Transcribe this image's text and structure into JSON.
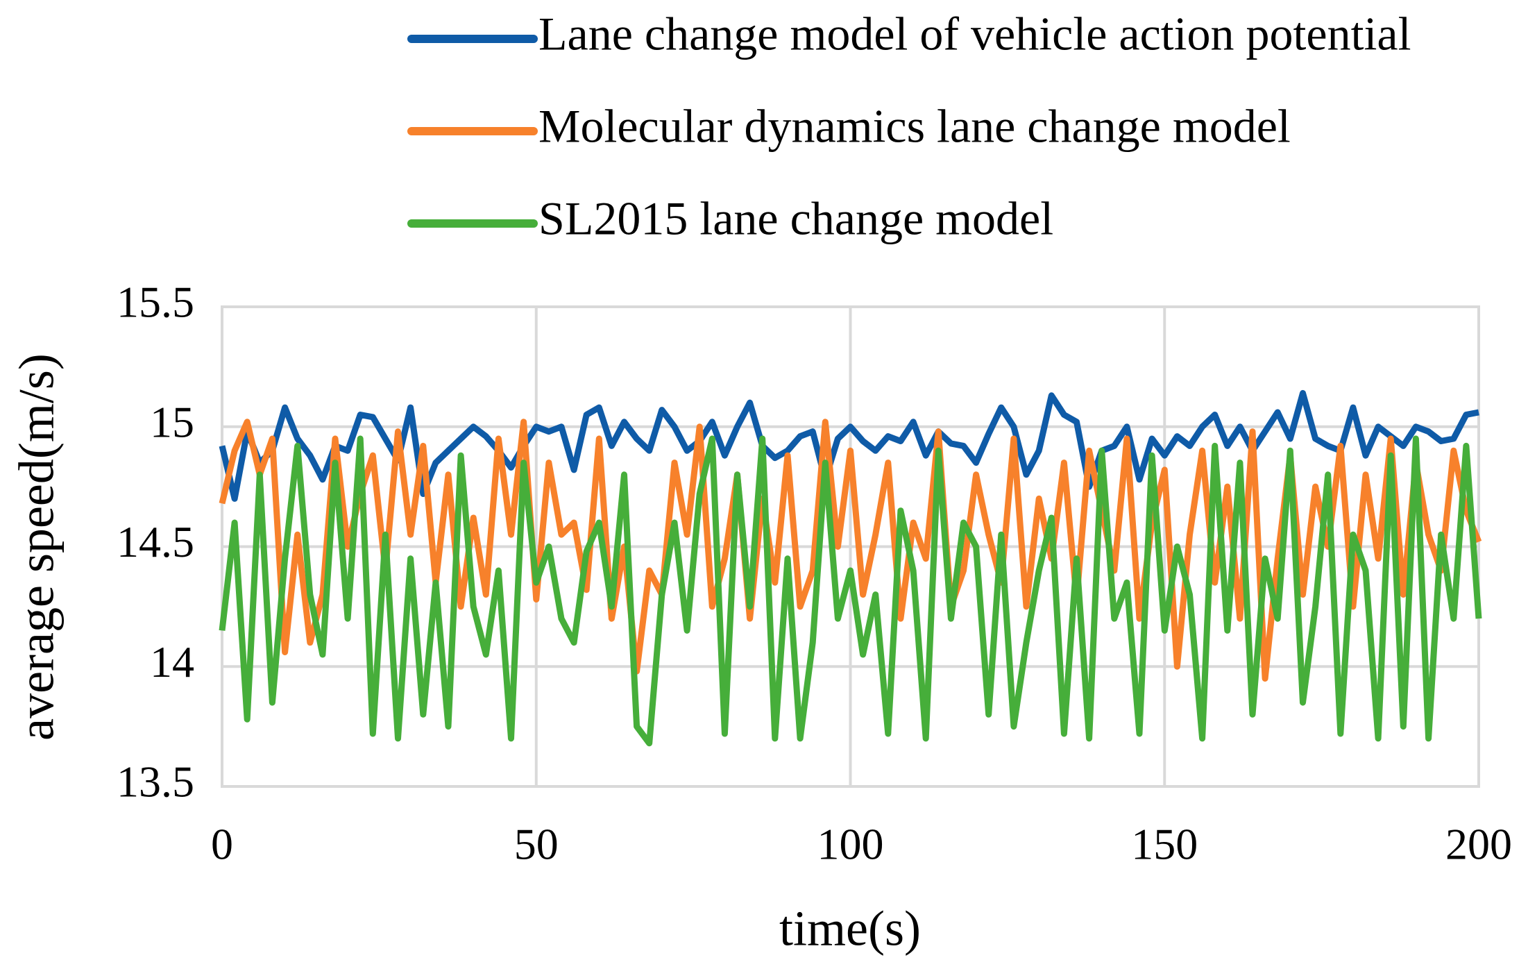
{
  "chart_data": {
    "type": "line",
    "xlabel": "time(s)",
    "ylabel": "average speed(m/s)",
    "x": [
      0,
      2,
      4,
      6,
      8,
      10,
      12,
      14,
      16,
      18,
      20,
      22,
      24,
      26,
      28,
      30,
      32,
      34,
      36,
      38,
      40,
      42,
      44,
      46,
      48,
      50,
      52,
      54,
      56,
      58,
      60,
      62,
      64,
      66,
      68,
      70,
      72,
      74,
      76,
      78,
      80,
      82,
      84,
      86,
      88,
      90,
      92,
      94,
      96,
      98,
      100,
      102,
      104,
      106,
      108,
      110,
      112,
      114,
      116,
      118,
      120,
      122,
      124,
      126,
      128,
      130,
      132,
      134,
      136,
      138,
      140,
      142,
      144,
      146,
      148,
      150,
      152,
      154,
      156,
      158,
      160,
      162,
      164,
      166,
      168,
      170,
      172,
      174,
      176,
      178,
      180,
      182,
      184,
      186,
      188,
      190,
      192,
      194,
      196,
      198,
      200
    ],
    "series": [
      {
        "name": "Lane change model of vehicle action potential",
        "color": "#0f5ba7",
        "values": [
          14.92,
          14.7,
          14.98,
          14.85,
          14.9,
          15.08,
          14.95,
          14.88,
          14.78,
          14.92,
          14.9,
          15.05,
          15.04,
          14.95,
          14.86,
          15.08,
          14.72,
          14.85,
          14.9,
          14.95,
          15.0,
          14.96,
          14.9,
          14.83,
          14.92,
          15.0,
          14.98,
          15.0,
          14.82,
          15.05,
          15.08,
          14.92,
          15.02,
          14.95,
          14.9,
          15.07,
          15.0,
          14.9,
          14.94,
          15.02,
          14.88,
          15.0,
          15.1,
          14.92,
          14.87,
          14.9,
          14.96,
          14.98,
          14.78,
          14.95,
          15.0,
          14.94,
          14.9,
          14.96,
          14.94,
          15.02,
          14.88,
          14.98,
          14.93,
          14.92,
          14.85,
          14.97,
          15.08,
          15.0,
          14.8,
          14.9,
          15.13,
          15.05,
          15.02,
          14.75,
          14.9,
          14.92,
          15.0,
          14.78,
          14.95,
          14.88,
          14.96,
          14.92,
          15.0,
          15.05,
          14.92,
          15.0,
          14.9,
          14.98,
          15.06,
          14.95,
          15.14,
          14.95,
          14.92,
          14.9,
          15.08,
          14.88,
          15.0,
          14.96,
          14.92,
          15.0,
          14.98,
          14.94,
          14.95,
          15.05,
          15.06
        ]
      },
      {
        "name": "Molecular dynamics lane change model",
        "color": "#f7812b",
        "values": [
          14.68,
          14.9,
          15.02,
          14.8,
          14.95,
          14.06,
          14.55,
          14.1,
          14.3,
          14.95,
          14.5,
          14.72,
          14.88,
          14.4,
          14.98,
          14.55,
          14.92,
          14.35,
          14.8,
          14.25,
          14.62,
          14.3,
          14.95,
          14.55,
          15.02,
          14.28,
          14.85,
          14.55,
          14.6,
          14.32,
          14.95,
          14.2,
          14.5,
          13.98,
          14.4,
          14.3,
          14.85,
          14.55,
          15.0,
          14.25,
          14.45,
          14.8,
          14.2,
          14.7,
          14.35,
          14.88,
          14.25,
          14.4,
          15.02,
          14.5,
          14.9,
          14.3,
          14.55,
          14.85,
          14.2,
          14.6,
          14.45,
          14.98,
          14.25,
          14.4,
          14.8,
          14.55,
          14.35,
          14.95,
          14.25,
          14.7,
          14.45,
          14.85,
          14.28,
          14.9,
          14.65,
          14.4,
          14.95,
          14.2,
          14.6,
          14.82,
          14.0,
          14.55,
          14.9,
          14.35,
          14.75,
          14.2,
          14.98,
          13.95,
          14.45,
          14.88,
          14.3,
          14.75,
          14.5,
          14.92,
          14.25,
          14.8,
          14.45,
          14.95,
          14.3,
          14.85,
          14.55,
          14.4,
          14.9,
          14.65,
          14.52
        ]
      },
      {
        "name": "SL2015 lane change model",
        "color": "#46ae3a",
        "values": [
          14.15,
          14.6,
          13.78,
          14.8,
          13.85,
          14.45,
          14.92,
          14.3,
          14.05,
          14.85,
          14.2,
          14.95,
          13.72,
          14.55,
          13.7,
          14.45,
          13.8,
          14.35,
          13.75,
          14.88,
          14.25,
          14.05,
          14.4,
          13.7,
          14.85,
          14.35,
          14.5,
          14.2,
          14.1,
          14.48,
          14.6,
          14.25,
          14.8,
          13.75,
          13.68,
          14.3,
          14.6,
          14.15,
          14.72,
          14.95,
          13.72,
          14.8,
          14.25,
          14.95,
          13.7,
          14.45,
          13.7,
          14.1,
          14.85,
          14.2,
          14.4,
          14.05,
          14.3,
          13.72,
          14.65,
          14.4,
          13.7,
          14.9,
          14.2,
          14.6,
          14.5,
          13.8,
          14.55,
          13.75,
          14.1,
          14.4,
          14.62,
          13.72,
          14.45,
          13.7,
          14.9,
          14.2,
          14.35,
          13.72,
          14.88,
          14.15,
          14.5,
          14.3,
          13.7,
          14.92,
          14.15,
          14.85,
          13.8,
          14.45,
          14.2,
          14.9,
          13.85,
          14.25,
          14.8,
          13.72,
          14.55,
          14.4,
          13.7,
          14.88,
          13.75,
          14.95,
          13.7,
          14.55,
          14.2,
          14.92,
          14.2
        ]
      }
    ],
    "xlim": [
      0,
      200
    ],
    "xticks": [
      0,
      50,
      100,
      150,
      200
    ],
    "ylim": [
      13.5,
      15.5
    ],
    "yticks": [
      13.5,
      14,
      14.5,
      15,
      15.5
    ],
    "grid": true
  }
}
